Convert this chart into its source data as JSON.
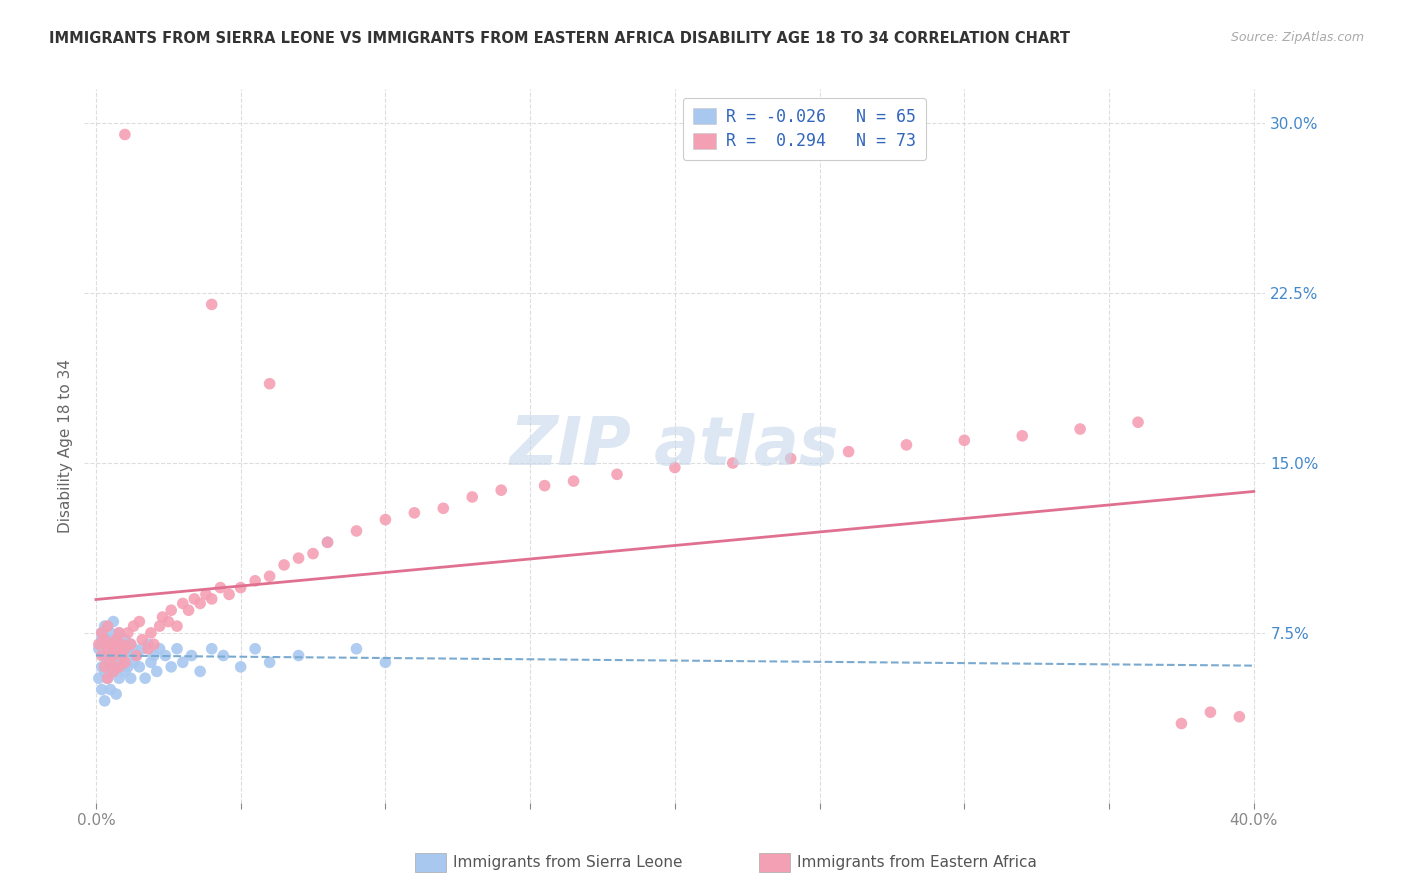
{
  "title": "IMMIGRANTS FROM SIERRA LEONE VS IMMIGRANTS FROM EASTERN AFRICA DISABILITY AGE 18 TO 34 CORRELATION CHART",
  "source": "Source: ZipAtlas.com",
  "ylabel_label": "Disability Age 18 to 34",
  "xlim": [
    0.0,
    0.4
  ],
  "ylim": [
    0.0,
    0.31
  ],
  "ytick_positions": [
    0.075,
    0.15,
    0.225,
    0.3
  ],
  "ytick_labels": [
    "7.5%",
    "15.0%",
    "22.5%",
    "30.0%"
  ],
  "color_sl": "#a8c8f0",
  "color_ea": "#f4a0b4",
  "line_color_sl": "#7aaad0",
  "line_color_ea": "#e07090",
  "legend_label_sl": "Immigrants from Sierra Leone",
  "legend_label_ea": "Immigrants from Eastern Africa",
  "background_color": "#ffffff",
  "grid_color": "#dddddd",
  "sl_x": [
    0.001,
    0.001,
    0.002,
    0.002,
    0.002,
    0.002,
    0.003,
    0.003,
    0.003,
    0.003,
    0.003,
    0.004,
    0.004,
    0.004,
    0.004,
    0.005,
    0.005,
    0.005,
    0.005,
    0.006,
    0.006,
    0.006,
    0.006,
    0.007,
    0.007,
    0.007,
    0.007,
    0.008,
    0.008,
    0.008,
    0.009,
    0.009,
    0.01,
    0.01,
    0.01,
    0.011,
    0.011,
    0.012,
    0.012,
    0.013,
    0.013,
    0.014,
    0.015,
    0.016,
    0.017,
    0.018,
    0.019,
    0.02,
    0.021,
    0.022,
    0.024,
    0.026,
    0.028,
    0.03,
    0.033,
    0.036,
    0.04,
    0.044,
    0.05,
    0.055,
    0.06,
    0.07,
    0.08,
    0.09,
    0.1
  ],
  "sl_y": [
    0.068,
    0.055,
    0.072,
    0.06,
    0.075,
    0.05,
    0.065,
    0.07,
    0.058,
    0.078,
    0.045,
    0.062,
    0.068,
    0.072,
    0.055,
    0.06,
    0.068,
    0.075,
    0.05,
    0.065,
    0.07,
    0.058,
    0.08,
    0.06,
    0.065,
    0.072,
    0.048,
    0.068,
    0.075,
    0.055,
    0.062,
    0.07,
    0.065,
    0.058,
    0.072,
    0.06,
    0.068,
    0.055,
    0.07,
    0.062,
    0.068,
    0.065,
    0.06,
    0.068,
    0.055,
    0.07,
    0.062,
    0.065,
    0.058,
    0.068,
    0.065,
    0.06,
    0.068,
    0.062,
    0.065,
    0.058,
    0.068,
    0.065,
    0.06,
    0.068,
    0.062,
    0.065,
    0.115,
    0.068,
    0.062
  ],
  "ea_x": [
    0.001,
    0.002,
    0.002,
    0.003,
    0.003,
    0.004,
    0.004,
    0.004,
    0.005,
    0.005,
    0.006,
    0.006,
    0.007,
    0.007,
    0.008,
    0.008,
    0.009,
    0.009,
    0.01,
    0.01,
    0.011,
    0.012,
    0.013,
    0.014,
    0.015,
    0.016,
    0.018,
    0.019,
    0.02,
    0.022,
    0.023,
    0.025,
    0.026,
    0.028,
    0.03,
    0.032,
    0.034,
    0.036,
    0.038,
    0.04,
    0.043,
    0.046,
    0.05,
    0.055,
    0.06,
    0.065,
    0.07,
    0.075,
    0.08,
    0.09,
    0.1,
    0.11,
    0.12,
    0.13,
    0.14,
    0.155,
    0.165,
    0.18,
    0.2,
    0.22,
    0.24,
    0.26,
    0.28,
    0.3,
    0.32,
    0.34,
    0.36,
    0.375,
    0.385,
    0.395,
    0.01,
    0.04,
    0.06
  ],
  "ea_y": [
    0.07,
    0.065,
    0.075,
    0.06,
    0.072,
    0.068,
    0.055,
    0.078,
    0.062,
    0.07,
    0.065,
    0.058,
    0.072,
    0.068,
    0.06,
    0.075,
    0.065,
    0.07,
    0.062,
    0.068,
    0.075,
    0.07,
    0.078,
    0.065,
    0.08,
    0.072,
    0.068,
    0.075,
    0.07,
    0.078,
    0.082,
    0.08,
    0.085,
    0.078,
    0.088,
    0.085,
    0.09,
    0.088,
    0.092,
    0.09,
    0.095,
    0.092,
    0.095,
    0.098,
    0.1,
    0.105,
    0.108,
    0.11,
    0.115,
    0.12,
    0.125,
    0.128,
    0.13,
    0.135,
    0.138,
    0.14,
    0.142,
    0.145,
    0.148,
    0.15,
    0.152,
    0.155,
    0.158,
    0.16,
    0.162,
    0.165,
    0.168,
    0.035,
    0.04,
    0.038,
    0.295,
    0.22,
    0.185
  ]
}
